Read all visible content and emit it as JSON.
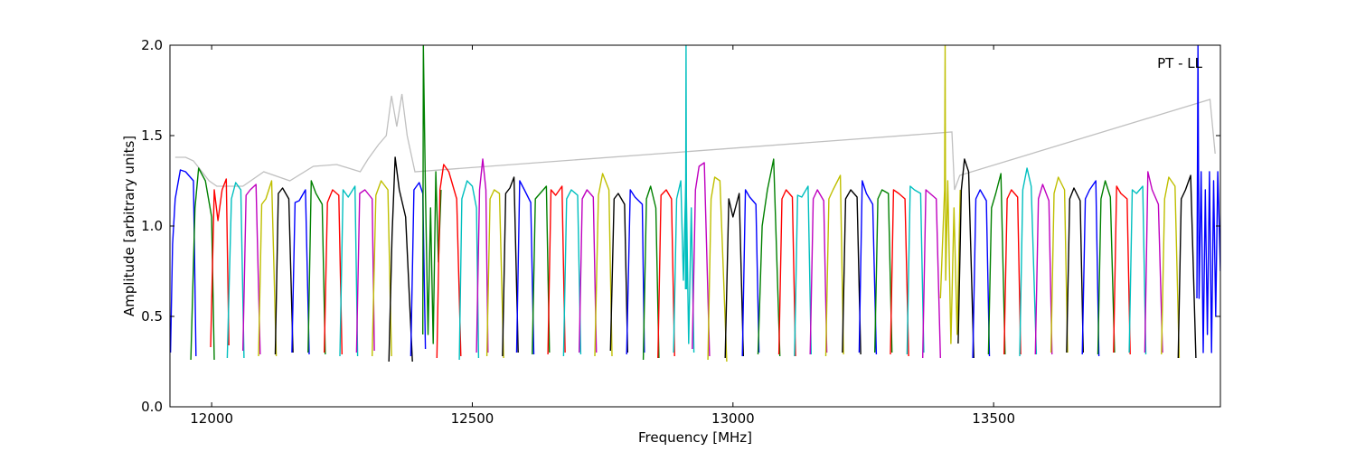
{
  "chart_data": {
    "type": "line",
    "annotation": "PT - LL",
    "xlabel": "Frequency [MHz]",
    "ylabel": "Amplitude [arbitrary units]",
    "xlim": [
      11920,
      13935
    ],
    "ylim": [
      0.0,
      2.0
    ],
    "xticks": [
      12000,
      12500,
      13000,
      13500
    ],
    "yticks": [
      0.0,
      0.5,
      1.0,
      1.5,
      2.0
    ],
    "xtick_labels": [
      "12000",
      "12500",
      "13000",
      "13500"
    ],
    "ytick_labels": [
      "0.0",
      "0.5",
      "1.0",
      "1.5",
      "2.0"
    ],
    "grid": false,
    "legend": "none",
    "background_series": {
      "color": "#c0c0c0",
      "x": [
        11930,
        11950,
        11965,
        11995,
        12010,
        12060,
        12100,
        12150,
        12195,
        12240,
        12285,
        12300,
        12320,
        12335,
        12345,
        12355,
        12365,
        12375,
        12390,
        13420,
        13425,
        13435,
        13915,
        13925
      ],
      "y": [
        1.38,
        1.38,
        1.36,
        1.25,
        1.22,
        1.22,
        1.3,
        1.25,
        1.33,
        1.34,
        1.3,
        1.37,
        1.45,
        1.5,
        1.72,
        1.55,
        1.73,
        1.5,
        1.3,
        1.52,
        1.2,
        1.28,
        1.7,
        1.4
      ]
    },
    "series": [
      {
        "color": "#0000ff",
        "x": [
          11921,
          11925,
          11930,
          11940,
          11950,
          11965,
          11970
        ],
        "y": [
          0.3,
          0.9,
          1.15,
          1.31,
          1.3,
          1.25,
          0.28
        ]
      },
      {
        "color": "#008000",
        "x": [
          11960,
          11968,
          11975,
          11988,
          12000,
          12005
        ],
        "y": [
          0.26,
          1.1,
          1.32,
          1.25,
          1.05,
          0.26
        ]
      },
      {
        "color": "#ff0000",
        "x": [
          11998,
          12005,
          12012,
          12020,
          12028,
          12033
        ],
        "y": [
          0.33,
          1.2,
          1.03,
          1.2,
          1.26,
          0.34
        ]
      },
      {
        "color": "#00bfbf",
        "x": [
          12030,
          12038,
          12046,
          12056,
          12062
        ],
        "y": [
          0.27,
          1.15,
          1.24,
          1.2,
          0.27
        ]
      },
      {
        "color": "#bf00bf",
        "x": [
          12060,
          12066,
          12074,
          12085,
          12093
        ],
        "y": [
          0.31,
          1.17,
          1.2,
          1.23,
          0.29
        ]
      },
      {
        "color": "#bfbf00",
        "x": [
          12090,
          12096,
          12104,
          12115,
          12124
        ],
        "y": [
          0.28,
          1.12,
          1.15,
          1.25,
          0.28
        ]
      },
      {
        "color": "#000000",
        "x": [
          12122,
          12128,
          12136,
          12148,
          12156
        ],
        "y": [
          0.29,
          1.18,
          1.21,
          1.15,
          0.3
        ]
      },
      {
        "color": "#0000ff",
        "x": [
          12154,
          12160,
          12168,
          12180,
          12187
        ],
        "y": [
          0.3,
          1.13,
          1.14,
          1.2,
          0.29
        ]
      },
      {
        "color": "#008000",
        "x": [
          12185,
          12191,
          12200,
          12212,
          12218
        ],
        "y": [
          0.3,
          1.25,
          1.18,
          1.12,
          0.29
        ]
      },
      {
        "color": "#ff0000",
        "x": [
          12216,
          12222,
          12232,
          12244,
          12250
        ],
        "y": [
          0.3,
          1.13,
          1.2,
          1.17,
          0.29
        ]
      },
      {
        "color": "#00bfbf",
        "x": [
          12246,
          12252,
          12262,
          12275,
          12280
        ],
        "y": [
          0.28,
          1.2,
          1.16,
          1.22,
          0.28
        ]
      },
      {
        "color": "#bf00bf",
        "x": [
          12278,
          12284,
          12294,
          12308,
          12312
        ],
        "y": [
          0.3,
          1.18,
          1.2,
          1.15,
          0.31
        ]
      },
      {
        "color": "#bfbf00",
        "x": [
          12308,
          12315,
          12325,
          12338,
          12345
        ],
        "y": [
          0.28,
          1.17,
          1.25,
          1.2,
          0.28
        ]
      },
      {
        "color": "#000000",
        "x": [
          12340,
          12346,
          12352,
          12360,
          12372,
          12385
        ],
        "y": [
          0.25,
          0.95,
          1.38,
          1.2,
          1.05,
          0.25
        ]
      },
      {
        "color": "#0000ff",
        "x": [
          12382,
          12388,
          12398,
          12405,
          12410
        ],
        "y": [
          0.28,
          1.2,
          1.24,
          1.18,
          0.32
        ]
      },
      {
        "color": "#008000",
        "x": [
          12405,
          12406,
          12410,
          12415,
          12420,
          12425,
          12430,
          12435,
          12440
        ],
        "y": [
          0.4,
          2.0,
          1.2,
          0.4,
          1.1,
          0.35,
          1.3,
          0.8,
          1.2
        ]
      },
      {
        "color": "#ff0000",
        "x": [
          12432,
          12438,
          12445,
          12455,
          12470,
          12478
        ],
        "y": [
          0.27,
          1.2,
          1.34,
          1.3,
          1.15,
          0.28
        ]
      },
      {
        "color": "#00bfbf",
        "x": [
          12475,
          12480,
          12490,
          12500,
          12508,
          12512
        ],
        "y": [
          0.26,
          1.15,
          1.25,
          1.22,
          1.1,
          0.27
        ]
      },
      {
        "color": "#bf00bf",
        "x": [
          12508,
          12514,
          12520,
          12526,
          12530
        ],
        "y": [
          0.3,
          1.2,
          1.37,
          1.2,
          0.3
        ]
      },
      {
        "color": "#bfbf00",
        "x": [
          12528,
          12534,
          12542,
          12552,
          12560
        ],
        "y": [
          0.28,
          1.15,
          1.2,
          1.18,
          0.27
        ]
      },
      {
        "color": "#000000",
        "x": [
          12558,
          12564,
          12572,
          12580,
          12588
        ],
        "y": [
          0.28,
          1.18,
          1.21,
          1.27,
          0.3
        ]
      },
      {
        "color": "#0000ff",
        "x": [
          12585,
          12591,
          12600,
          12612,
          12618
        ],
        "y": [
          0.3,
          1.25,
          1.2,
          1.13,
          0.29
        ]
      },
      {
        "color": "#008000",
        "x": [
          12615,
          12621,
          12630,
          12642,
          12648
        ],
        "y": [
          0.29,
          1.15,
          1.18,
          1.22,
          0.3
        ]
      },
      {
        "color": "#ff0000",
        "x": [
          12645,
          12651,
          12660,
          12672,
          12678
        ],
        "y": [
          0.29,
          1.2,
          1.17,
          1.22,
          0.3
        ]
      },
      {
        "color": "#00bfbf",
        "x": [
          12675,
          12681,
          12690,
          12702,
          12708
        ],
        "y": [
          0.28,
          1.15,
          1.2,
          1.17,
          0.29
        ]
      },
      {
        "color": "#bf00bf",
        "x": [
          12705,
          12711,
          12720,
          12732,
          12738
        ],
        "y": [
          0.3,
          1.15,
          1.2,
          1.16,
          0.3
        ]
      },
      {
        "color": "#bfbf00",
        "x": [
          12735,
          12742,
          12750,
          12762,
          12768
        ],
        "y": [
          0.28,
          1.17,
          1.29,
          1.2,
          0.28
        ]
      },
      {
        "color": "#000000",
        "x": [
          12765,
          12772,
          12780,
          12792,
          12798
        ],
        "y": [
          0.31,
          1.15,
          1.18,
          1.12,
          0.3
        ]
      },
      {
        "color": "#0000ff",
        "x": [
          12796,
          12803,
          12812,
          12826,
          12830
        ],
        "y": [
          0.29,
          1.2,
          1.16,
          1.12,
          0.3
        ]
      },
      {
        "color": "#008000",
        "x": [
          12828,
          12834,
          12842,
          12852,
          12858
        ],
        "y": [
          0.26,
          1.15,
          1.22,
          1.1,
          0.27
        ]
      },
      {
        "color": "#ff0000",
        "x": [
          12856,
          12862,
          12872,
          12882,
          12888
        ],
        "y": [
          0.27,
          1.17,
          1.2,
          1.15,
          0.28
        ]
      },
      {
        "color": "#00bfbf",
        "x": [
          12886,
          12892,
          12900,
          12905,
          12910,
          12915,
          12920,
          12925
        ],
        "y": [
          0.3,
          1.15,
          1.25,
          0.7,
          1.3,
          0.35,
          1.1,
          0.3
        ]
      },
      {
        "color": "#00bfbf",
        "x": [
          12909,
          12910,
          12911
        ],
        "y": [
          0.65,
          2.0,
          0.65
        ]
      },
      {
        "color": "#bf00bf",
        "x": [
          12922,
          12928,
          12935,
          12945,
          12955
        ],
        "y": [
          0.32,
          1.2,
          1.33,
          1.35,
          0.28
        ]
      },
      {
        "color": "#bfbf00",
        "x": [
          12952,
          12958,
          12965,
          12975,
          12988
        ],
        "y": [
          0.26,
          1.15,
          1.27,
          1.25,
          0.25
        ]
      },
      {
        "color": "#000000",
        "x": [
          12985,
          12992,
          13000,
          13012,
          13020
        ],
        "y": [
          0.27,
          1.15,
          1.05,
          1.18,
          0.28
        ]
      },
      {
        "color": "#0000ff",
        "x": [
          13018,
          13024,
          13032,
          13044,
          13050
        ],
        "y": [
          0.28,
          1.2,
          1.16,
          1.12,
          0.3
        ]
      },
      {
        "color": "#008000",
        "x": [
          13048,
          13056,
          13066,
          13078,
          13090
        ],
        "y": [
          0.29,
          1.0,
          1.2,
          1.37,
          0.28
        ]
      },
      {
        "color": "#ff0000",
        "x": [
          13088,
          13094,
          13102,
          13114,
          13120
        ],
        "y": [
          0.29,
          1.15,
          1.2,
          1.16,
          0.28
        ]
      },
      {
        "color": "#00bfbf",
        "x": [
          13118,
          13124,
          13132,
          13144,
          13150
        ],
        "y": [
          0.28,
          1.17,
          1.16,
          1.22,
          0.29
        ]
      },
      {
        "color": "#bf00bf",
        "x": [
          13148,
          13154,
          13162,
          13174,
          13180
        ],
        "y": [
          0.29,
          1.15,
          1.2,
          1.14,
          0.3
        ]
      },
      {
        "color": "#bfbf00",
        "x": [
          13178,
          13184,
          13192,
          13206,
          13212
        ],
        "y": [
          0.28,
          1.15,
          1.2,
          1.28,
          0.29
        ]
      },
      {
        "color": "#000000",
        "x": [
          13210,
          13216,
          13226,
          13238,
          13245
        ],
        "y": [
          0.3,
          1.15,
          1.2,
          1.16,
          0.29
        ]
      },
      {
        "color": "#0000ff",
        "x": [
          13242,
          13248,
          13256,
          13268,
          13275
        ],
        "y": [
          0.3,
          1.25,
          1.18,
          1.12,
          0.29
        ]
      },
      {
        "color": "#008000",
        "x": [
          13272,
          13278,
          13286,
          13298,
          13305
        ],
        "y": [
          0.3,
          1.15,
          1.2,
          1.18,
          0.3
        ]
      },
      {
        "color": "#ff0000",
        "x": [
          13302,
          13308,
          13318,
          13330,
          13337
        ],
        "y": [
          0.29,
          1.2,
          1.18,
          1.15,
          0.28
        ]
      },
      {
        "color": "#00bfbf",
        "x": [
          13334,
          13340,
          13348,
          13360,
          13366
        ],
        "y": [
          0.29,
          1.22,
          1.2,
          1.18,
          0.3
        ]
      },
      {
        "color": "#bf00bf",
        "x": [
          13364,
          13370,
          13378,
          13390,
          13398
        ],
        "y": [
          0.27,
          1.2,
          1.18,
          1.15,
          0.27
        ]
      },
      {
        "color": "#bfbf00",
        "x": [
          13398,
          13406,
          13407,
          13408,
          13412,
          13418,
          13424,
          13430,
          13436
        ],
        "y": [
          0.6,
          1.2,
          2.0,
          0.7,
          1.25,
          0.35,
          1.1,
          0.4,
          1.2
        ]
      },
      {
        "color": "#000000",
        "x": [
          13432,
          13438,
          13444,
          13452,
          13462
        ],
        "y": [
          0.35,
          1.2,
          1.37,
          1.3,
          0.27
        ]
      },
      {
        "color": "#0000ff",
        "x": [
          13460,
          13466,
          13474,
          13486,
          13492
        ],
        "y": [
          0.27,
          1.15,
          1.2,
          1.14,
          0.28
        ]
      },
      {
        "color": "#008000",
        "x": [
          13490,
          13496,
          13504,
          13514,
          13522
        ],
        "y": [
          0.29,
          1.1,
          1.18,
          1.29,
          0.29
        ]
      },
      {
        "color": "#ff0000",
        "x": [
          13520,
          13526,
          13534,
          13546,
          13552
        ],
        "y": [
          0.29,
          1.15,
          1.2,
          1.16,
          0.29
        ]
      },
      {
        "color": "#00bfbf",
        "x": [
          13550,
          13556,
          13564,
          13572,
          13582
        ],
        "y": [
          0.28,
          1.2,
          1.32,
          1.22,
          0.29
        ]
      },
      {
        "color": "#bf00bf",
        "x": [
          13580,
          13586,
          13594,
          13606,
          13612
        ],
        "y": [
          0.29,
          1.15,
          1.23,
          1.14,
          0.29
        ]
      },
      {
        "color": "#bfbf00",
        "x": [
          13610,
          13616,
          13624,
          13636,
          13642
        ],
        "y": [
          0.3,
          1.18,
          1.27,
          1.2,
          0.3
        ]
      },
      {
        "color": "#000000",
        "x": [
          13640,
          13646,
          13654,
          13666,
          13672
        ],
        "y": [
          0.3,
          1.15,
          1.21,
          1.14,
          0.3
        ]
      },
      {
        "color": "#0000ff",
        "x": [
          13670,
          13676,
          13684,
          13696,
          13702
        ],
        "y": [
          0.29,
          1.15,
          1.2,
          1.25,
          0.28
        ]
      },
      {
        "color": "#008000",
        "x": [
          13700,
          13706,
          13714,
          13724,
          13732
        ],
        "y": [
          0.29,
          1.15,
          1.25,
          1.16,
          0.3
        ]
      },
      {
        "color": "#ff0000",
        "x": [
          13730,
          13736,
          13744,
          13756,
          13762
        ],
        "y": [
          0.3,
          1.22,
          1.18,
          1.15,
          0.29
        ]
      },
      {
        "color": "#00bfbf",
        "x": [
          13760,
          13766,
          13774,
          13786,
          13792
        ],
        "y": [
          0.3,
          1.2,
          1.18,
          1.22,
          0.29
        ]
      },
      {
        "color": "#bf00bf",
        "x": [
          13790,
          13796,
          13804,
          13816,
          13824
        ],
        "y": [
          0.3,
          1.3,
          1.2,
          1.12,
          0.3
        ]
      },
      {
        "color": "#bfbf00",
        "x": [
          13822,
          13828,
          13836,
          13848,
          13856
        ],
        "y": [
          0.29,
          1.15,
          1.27,
          1.22,
          0.27
        ]
      },
      {
        "color": "#000000",
        "x": [
          13854,
          13860,
          13868,
          13878,
          13888
        ],
        "y": [
          0.27,
          1.15,
          1.2,
          1.28,
          0.27
        ]
      },
      {
        "color": "#0000ff",
        "x": [
          13890,
          13892,
          13894,
          13898,
          13902,
          13906,
          13910,
          13914,
          13918,
          13922,
          13926,
          13930,
          13935
        ],
        "y": [
          0.6,
          2.0,
          0.6,
          1.3,
          0.3,
          1.2,
          0.4,
          1.3,
          0.3,
          1.25,
          0.5,
          1.3,
          0.75
        ]
      }
    ]
  }
}
